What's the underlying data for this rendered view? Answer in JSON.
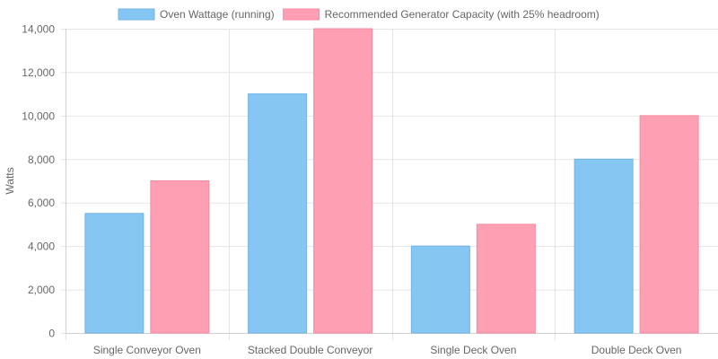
{
  "chart_data": {
    "type": "bar",
    "categories": [
      "Single Conveyor Oven",
      "Stacked Double Conveyor",
      "Single Deck Oven",
      "Double Deck Oven"
    ],
    "series": [
      {
        "name": "Oven Wattage (running)",
        "values": [
          5500,
          11000,
          4000,
          8000
        ],
        "color": "#85c6f2",
        "border": "#6fb4e6"
      },
      {
        "name": "Recommended Generator Capacity (with 25% headroom)",
        "values": [
          7000,
          14000,
          5000,
          10000
        ],
        "color": "#ff9fb4",
        "border": "#f58aa2"
      }
    ],
    "ylabel": "Watts",
    "ylim": [
      0,
      14000
    ],
    "yticks": [
      0,
      2000,
      4000,
      6000,
      8000,
      10000,
      12000,
      14000
    ],
    "ytick_labels": [
      "0",
      "2,000",
      "4,000",
      "6,000",
      "8,000",
      "10,000",
      "12,000",
      "14,000"
    ],
    "grid": true,
    "legend_position": "top"
  }
}
